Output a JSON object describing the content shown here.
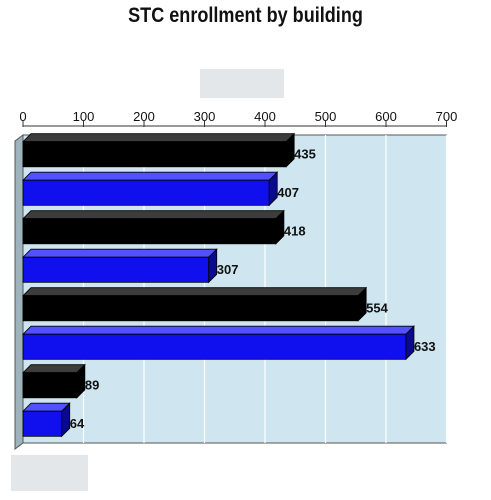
{
  "chart_data": {
    "type": "bar",
    "orientation": "horizontal",
    "title": "STC enrollment by building",
    "xlabel": "",
    "ylabel": "",
    "xlim": [
      0,
      700
    ],
    "ticks": [
      0,
      100,
      200,
      300,
      400,
      500,
      600,
      700
    ],
    "grid": true,
    "values": [
      435,
      407,
      418,
      307,
      554,
      633,
      89,
      64
    ],
    "bar_colors": [
      "#000000",
      "#1010ee",
      "#000000",
      "#1010ee",
      "#000000",
      "#1010ee",
      "#000000",
      "#1010ee"
    ],
    "plot_background": "#cfe6f0"
  }
}
